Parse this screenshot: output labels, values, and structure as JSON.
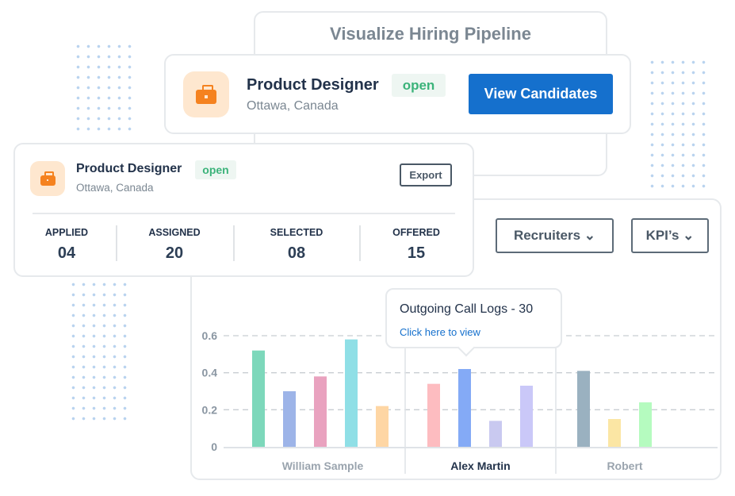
{
  "back_card": {
    "title": "Visualize Hiring Pipeline"
  },
  "job_card": {
    "title": "Product Designer",
    "status": "open",
    "location": "Ottawa, Canada",
    "view_button": "View Candidates",
    "icon": "briefcase-icon"
  },
  "summary_card": {
    "title": "Product Designer",
    "status": "open",
    "location": "Ottawa, Canada",
    "export_button": "Export",
    "stats": [
      {
        "label": "APPLIED",
        "value": "04"
      },
      {
        "label": "ASSIGNED",
        "value": "20"
      },
      {
        "label": "SELECTED",
        "value": "08"
      },
      {
        "label": "OFFERED",
        "value": "15"
      }
    ]
  },
  "filters": {
    "recruiters": "Recruiters",
    "kpis": "KPI’s"
  },
  "tooltip": {
    "title": "Outgoing Call Logs - 30",
    "link": "Click here to view"
  },
  "colors": {
    "primary": "#1570cd",
    "open": "#3bb37a",
    "brand_orange": "#f5821f"
  },
  "chart_data": {
    "type": "bar",
    "ylim": [
      0,
      0.6
    ],
    "yticks": [
      "0",
      "0.2",
      "0.4",
      "0.6"
    ],
    "grid": true,
    "groups": [
      {
        "label": "William Sample",
        "values": [
          0.52,
          0.3,
          0.38,
          0.58,
          0.22
        ],
        "colors": [
          "#7dd8bb",
          "#9db4e8",
          "#e9a2bf",
          "#8fdfe6",
          "#fed6a4"
        ]
      },
      {
        "label": "Alex Martin",
        "values": [
          0.34,
          0.42,
          0.14,
          0.33
        ],
        "colors": [
          "#fdbcc0",
          "#84aaf6",
          "#c9c9f0",
          "#cac8f8"
        ]
      },
      {
        "label": "Robert",
        "values": [
          0.41,
          0.15,
          0.24
        ],
        "colors": [
          "#9ab1c0",
          "#fbe6a4",
          "#b5fbbf"
        ]
      }
    ],
    "selected_group": "Alex Martin"
  }
}
